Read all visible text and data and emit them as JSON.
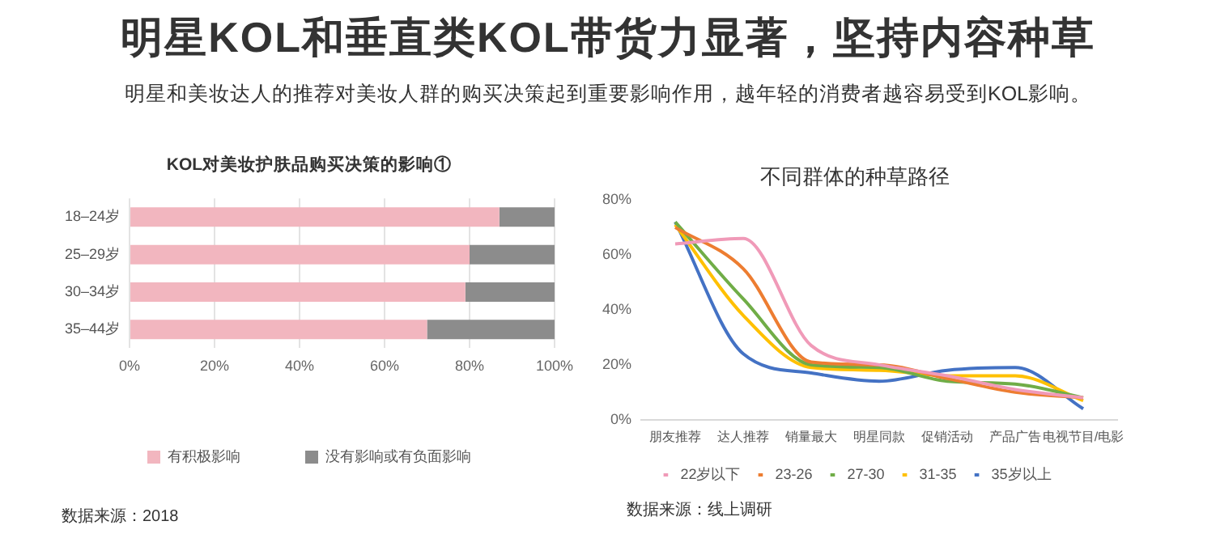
{
  "chart_data": [
    {
      "type": "other",
      "title": "明星KOL和垂直类KOL带货力显著，坚持内容种草",
      "subtitle": "明星和美妆达人的推荐对美妆人群的购买决策起到重要影响作用，越年轻的消费者越容易受到KOL影响。"
    },
    {
      "type": "bar",
      "orientation": "horizontal",
      "stacked": true,
      "title": "KOL对美妆护肤品购买决策的影响①",
      "categories": [
        "18–24岁",
        "25–29岁",
        "30–34岁",
        "35–44岁"
      ],
      "series": [
        {
          "name": "有积极影响",
          "color": "#f2b6bf",
          "values": [
            87,
            80,
            79,
            70
          ]
        },
        {
          "name": "没有影响或有负面影响",
          "color": "#8c8c8c",
          "values": [
            13,
            20,
            21,
            30
          ]
        }
      ],
      "xlim": [
        0,
        100
      ],
      "xticks": [
        {
          "value": 0,
          "label": "0%"
        },
        {
          "value": 20,
          "label": "20%"
        },
        {
          "value": 40,
          "label": "40%"
        },
        {
          "value": 60,
          "label": "60%"
        },
        {
          "value": 80,
          "label": "80%"
        },
        {
          "value": 100,
          "label": "100%"
        }
      ],
      "grid": "x",
      "legend": "bottom",
      "annotations": [
        "数据来源：2018"
      ]
    },
    {
      "type": "line",
      "title": "不同群体的种草路径",
      "categories": [
        "朋友推荐",
        "达人推荐",
        "销量最大",
        "明星同款",
        "促销活动",
        "产品广告",
        "电视节目/电影"
      ],
      "series": [
        {
          "name": "22岁以下",
          "color": "#f09ab8",
          "values": [
            64,
            66,
            27,
            20,
            16,
            11,
            8
          ]
        },
        {
          "name": "23-26",
          "color": "#ed7d31",
          "values": [
            70,
            55,
            21,
            20,
            15,
            10,
            8
          ]
        },
        {
          "name": "27-30",
          "color": "#70ad47",
          "values": [
            72,
            44,
            20,
            19,
            14,
            13,
            8
          ]
        },
        {
          "name": "31-35",
          "color": "#ffc000",
          "values": [
            71,
            38,
            19,
            18,
            16,
            16,
            7
          ]
        },
        {
          "name": "35岁以上",
          "color": "#4472c4",
          "values": [
            72,
            24,
            17,
            14,
            18,
            19,
            4
          ]
        }
      ],
      "ylim": [
        0,
        80
      ],
      "yticks": [
        {
          "value": 0,
          "label": "0%"
        },
        {
          "value": 20,
          "label": "20%"
        },
        {
          "value": 40,
          "label": "40%"
        },
        {
          "value": 60,
          "label": "60%"
        },
        {
          "value": 80,
          "label": "80%"
        }
      ],
      "grid": false,
      "legend": "bottom",
      "marker": "none",
      "line_style": "solid",
      "annotations": [
        "数据来源：线上调研"
      ]
    }
  ]
}
